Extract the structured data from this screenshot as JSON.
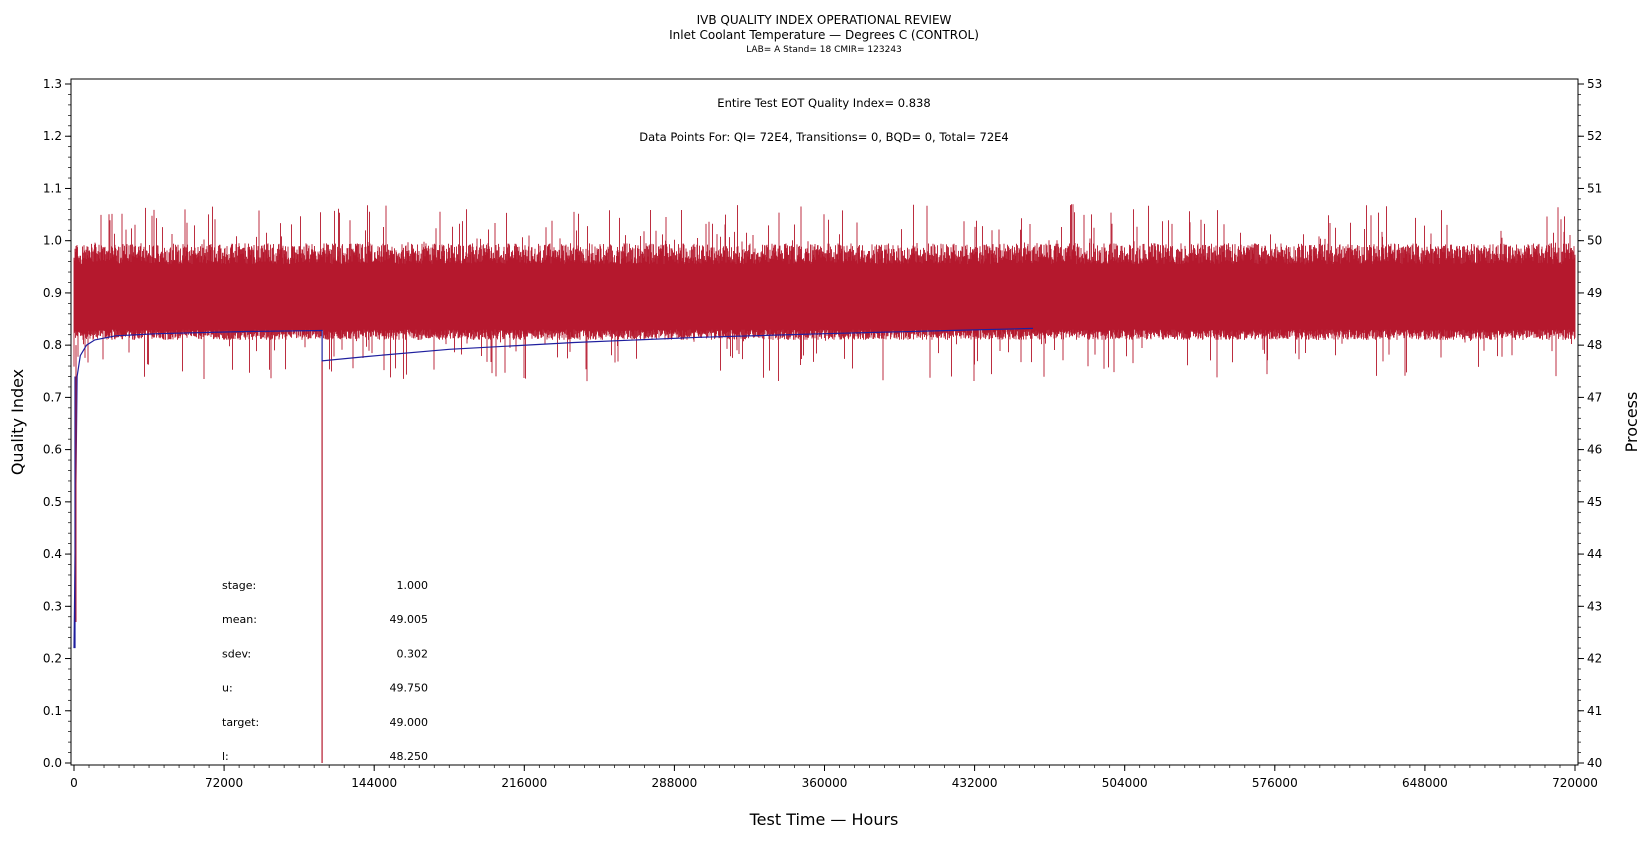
{
  "chart_data": {
    "type": "line",
    "title": "IVB QUALITY INDEX OPERATIONAL REVIEW",
    "subtitle": "Inlet Coolant Temperature — Degrees C (CONTROL)",
    "subtitle2": "LAB= A Stand= 18 CMIR= 123243",
    "xlabel": "Test Time — Hours",
    "ylabel": "Quality Index",
    "y2label": "Process",
    "xlim": [
      0,
      720000
    ],
    "ylim": [
      0,
      1.3
    ],
    "y2lim": [
      40,
      53
    ],
    "xticks": [
      0,
      72000,
      144000,
      216000,
      288000,
      360000,
      432000,
      504000,
      576000,
      648000,
      720000
    ],
    "yticks": [
      "0.0",
      "0.1",
      "0.2",
      "0.3",
      "0.4",
      "0.5",
      "0.6",
      "0.7",
      "0.8",
      "0.9",
      "1.0",
      "1.1",
      "1.2",
      "1.3"
    ],
    "y2ticks": [
      "40",
      "41",
      "42",
      "43",
      "44",
      "45",
      "46",
      "47",
      "48",
      "49",
      "50",
      "51",
      "52",
      "53"
    ],
    "annotations": {
      "eot": "Entire Test EOT Quality Index=   0.838",
      "points": "Data Points For: QI=  72E4, Transitions=      0, BQD=      0, Total=  72E4"
    },
    "stats": [
      {
        "label": "stage:",
        "value": "1.000"
      },
      {
        "label": "mean:",
        "value": "49.005"
      },
      {
        "label": "sdev:",
        "value": "0.302"
      },
      {
        "label": "u:",
        "value": "49.750"
      },
      {
        "label": "target:",
        "value": "49.000"
      },
      {
        "label": "l:",
        "value": "48.250"
      }
    ],
    "series": [
      {
        "color": "#b5182d",
        "band": {
          "typical_low": 0.82,
          "typical_high": 0.975,
          "min": 0.73,
          "max": 1.07
        },
        "spike": {
          "x": 119000,
          "low": 0.0,
          "high": 0.77
        }
      },
      {
        "color": "#1f1f9e",
        "x": [
          0,
          800,
          1500,
          3000,
          6000,
          10000,
          20000,
          40000,
          80000,
          118999,
          119000,
          140000,
          180000,
          240000,
          300000,
          360000,
          420000,
          460000
        ],
        "y": [
          0.22,
          0.5,
          0.74,
          0.78,
          0.8,
          0.81,
          0.818,
          0.822,
          0.826,
          0.828,
          0.77,
          0.778,
          0.792,
          0.805,
          0.815,
          0.822,
          0.828,
          0.832
        ]
      }
    ],
    "grid": false
  }
}
